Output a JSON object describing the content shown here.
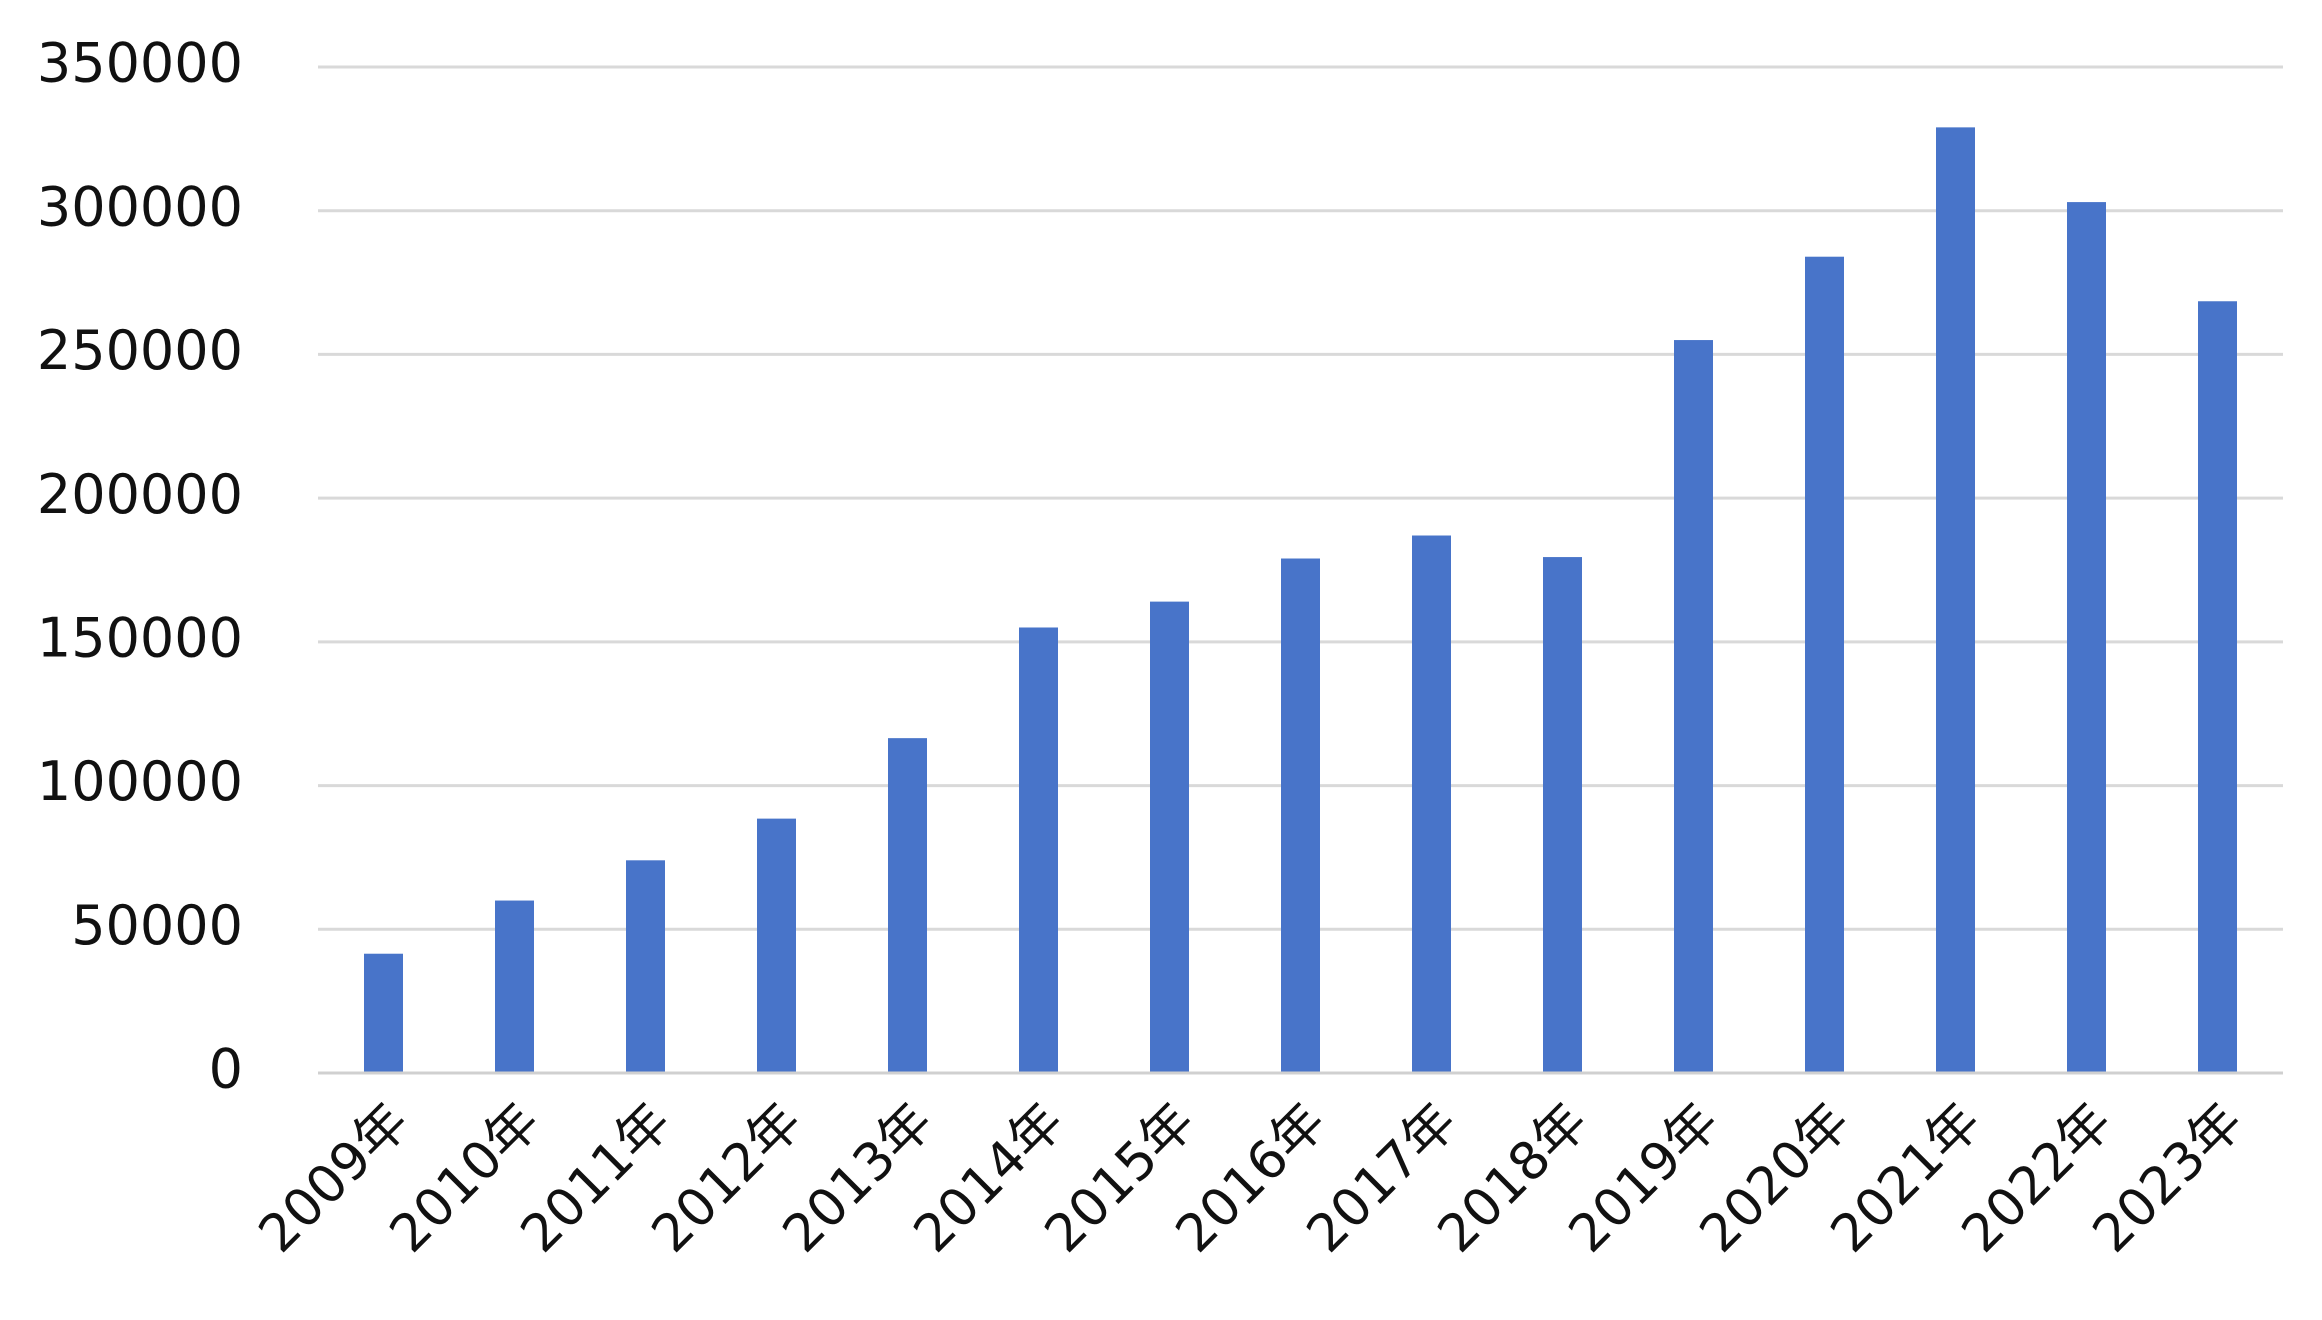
{
  "chart_data": {
    "type": "bar",
    "categories": [
      "2009年",
      "2010年",
      "2011年",
      "2012年",
      "2013年",
      "2014年",
      "2015年",
      "2016年",
      "2017年",
      "2018年",
      "2019年",
      "2020年",
      "2021年",
      "2022年",
      "2023年"
    ],
    "values": [
      41500,
      60000,
      74000,
      88500,
      116500,
      155000,
      164000,
      179000,
      187000,
      179500,
      255000,
      284000,
      329000,
      303000,
      268500
    ],
    "color": "#4874c9",
    "ylim": [
      0,
      350000
    ],
    "yticks": [
      0,
      50000,
      100000,
      150000,
      200000,
      250000,
      300000,
      350000
    ],
    "grid": true
  }
}
